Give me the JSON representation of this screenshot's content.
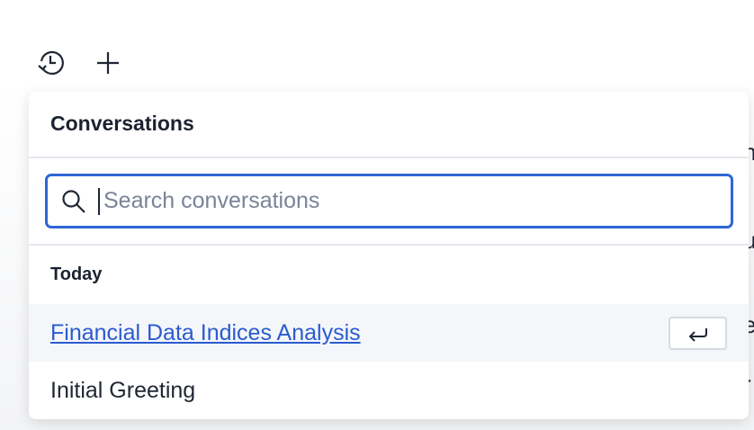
{
  "toolbar": {
    "history_icon": "history-clock-icon",
    "new_icon": "plus-icon"
  },
  "background_fragments": [
    "n",
    "u",
    "e",
    "r"
  ],
  "popup": {
    "title": "Conversations",
    "search": {
      "placeholder": "Search conversations",
      "value": "",
      "icon": "search-icon",
      "focus_color": "#2f66d6"
    },
    "sections": [
      {
        "label": "Today",
        "items": [
          {
            "label": "Financial Data Indices Analysis",
            "active": true,
            "shortcut_icon": "enter-key-icon"
          },
          {
            "label": "Initial Greeting",
            "active": false
          }
        ]
      }
    ]
  }
}
